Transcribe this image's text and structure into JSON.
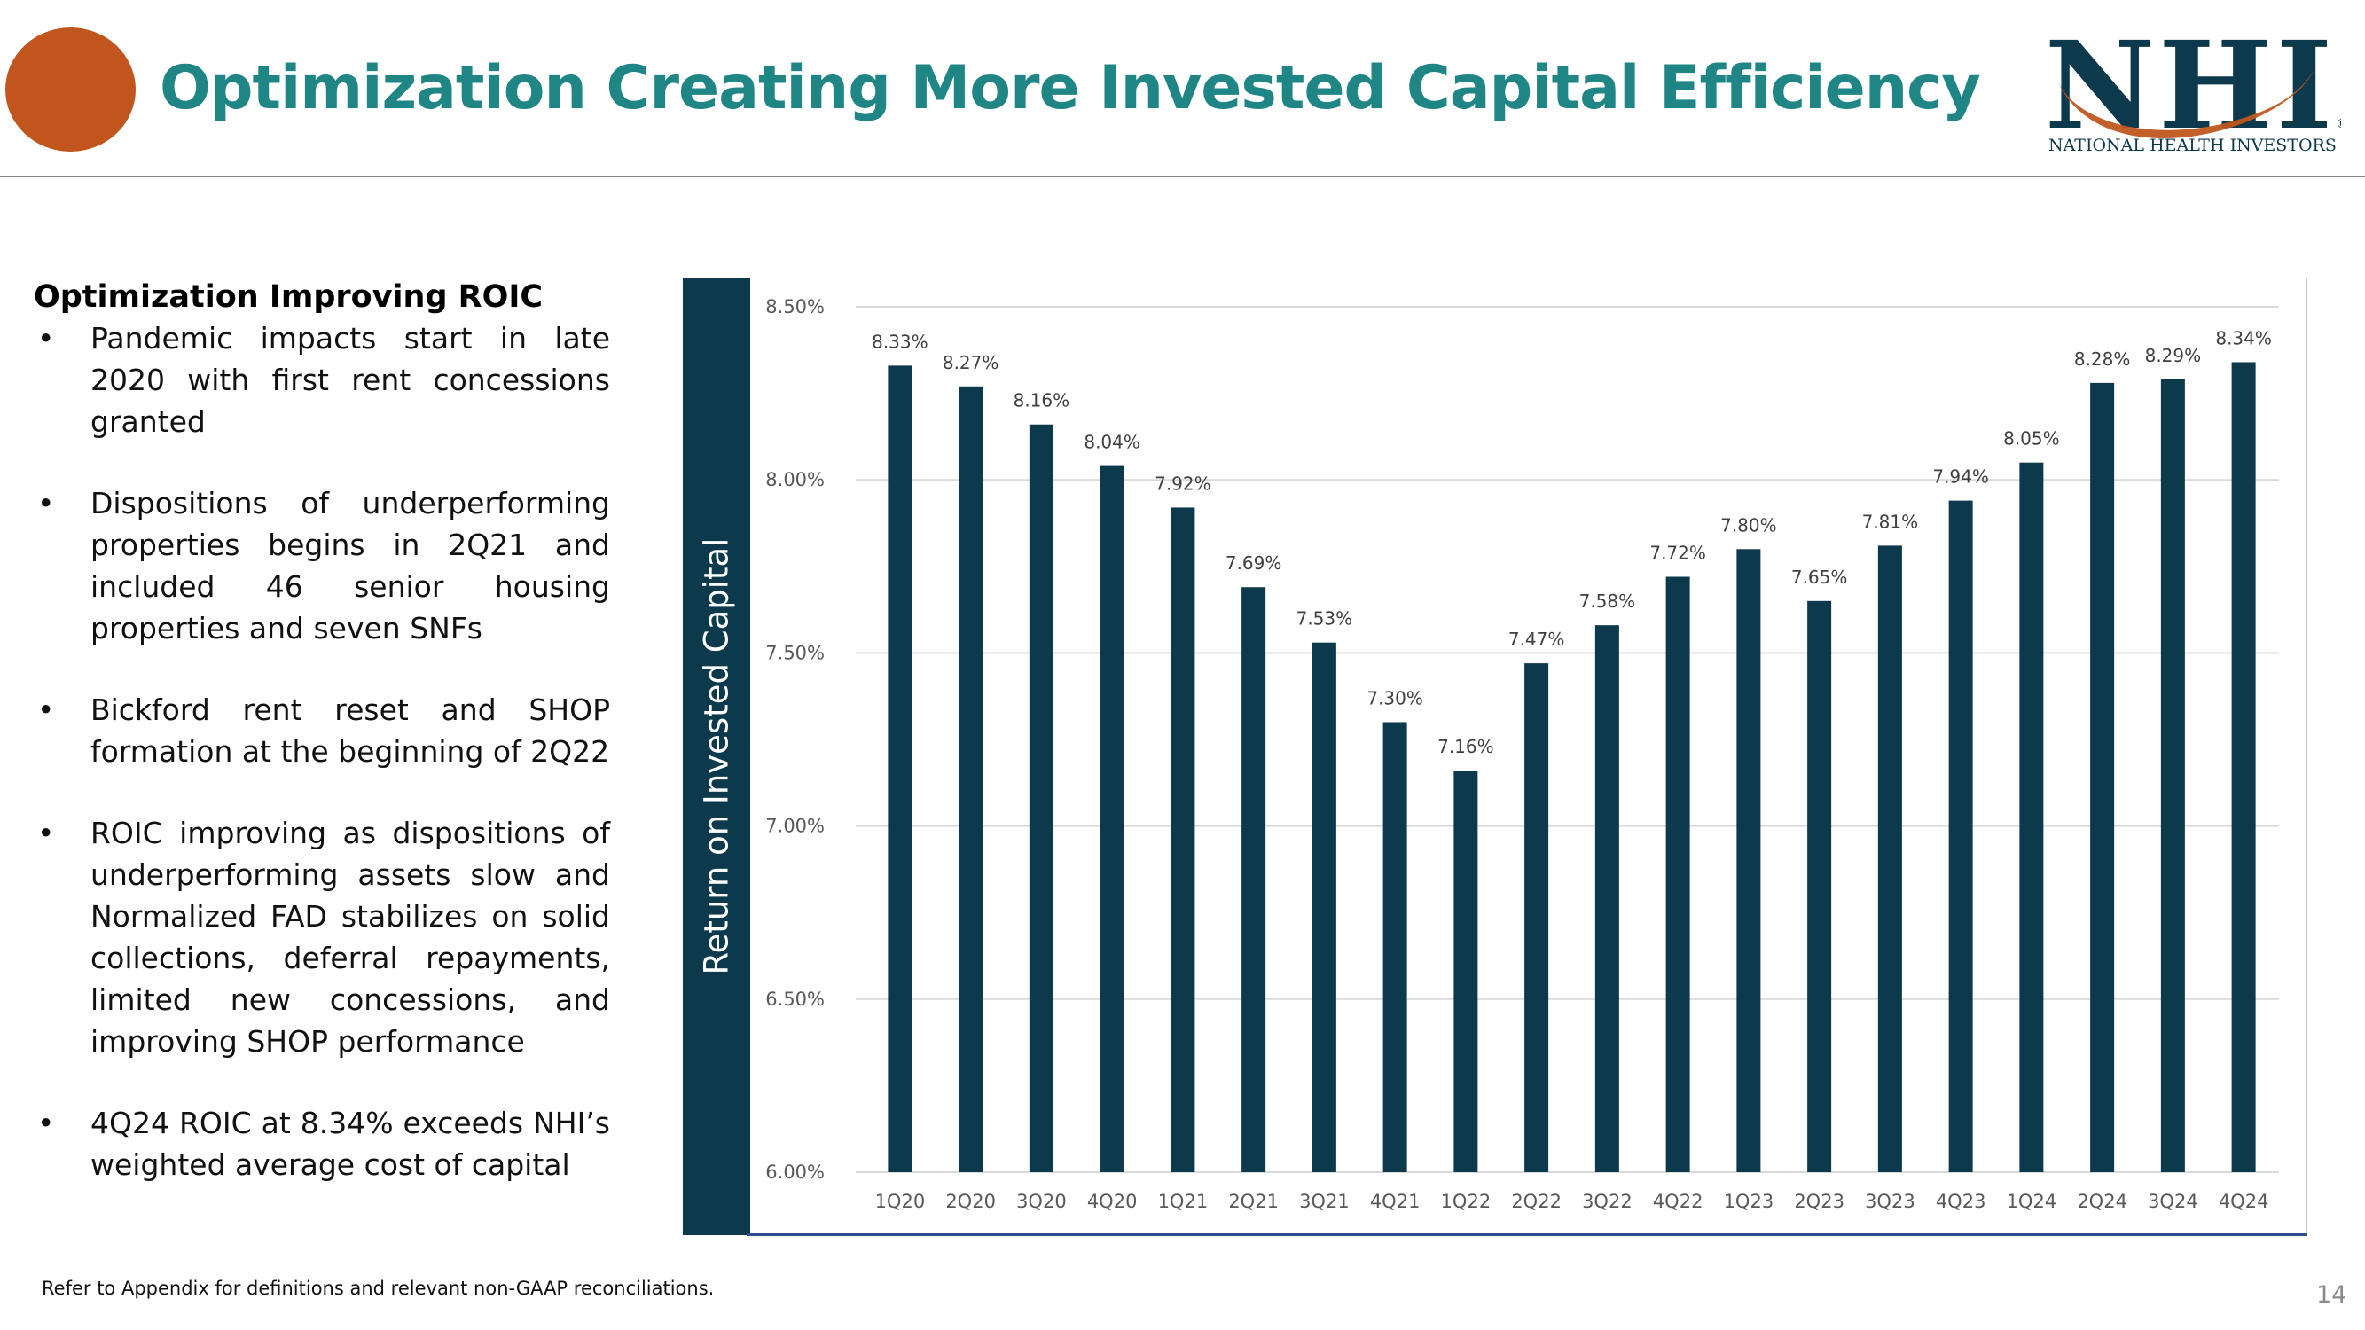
{
  "header": {
    "title": "Optimization Creating More Invested Capital Efficiency",
    "logo_text": "NHI",
    "logo_subtitle": "NATIONAL HEALTH INVESTORS",
    "registered_mark": "®"
  },
  "left": {
    "heading": "Optimization Improving ROIC",
    "bullets": [
      "Pandemic impacts start in late 2020 with first rent concessions granted",
      "Dispositions of underperforming properties begins in 2Q21 and included 46 senior housing properties and seven SNFs",
      "Bickford rent reset and SHOP formation at the beginning of 2Q22",
      "ROIC improving as dispositions of underperforming assets slow and Normalized FAD stabilizes on solid collections, deferral repayments, limited new concessions, and improving SHOP performance",
      "4Q24 ROIC at 8.34% exceeds NHI’s weighted average cost of capital"
    ]
  },
  "chart_data": {
    "type": "bar",
    "categories": [
      "1Q20",
      "2Q20",
      "3Q20",
      "4Q20",
      "1Q21",
      "2Q21",
      "3Q21",
      "4Q21",
      "1Q22",
      "2Q22",
      "3Q22",
      "4Q22",
      "1Q23",
      "2Q23",
      "3Q23",
      "4Q23",
      "1Q24",
      "2Q24",
      "3Q24",
      "4Q24"
    ],
    "values": [
      8.33,
      8.27,
      8.16,
      8.04,
      7.92,
      7.69,
      7.53,
      7.3,
      7.16,
      7.47,
      7.58,
      7.72,
      7.8,
      7.65,
      7.81,
      7.94,
      8.05,
      8.28,
      8.29,
      8.34
    ],
    "value_labels": [
      "8.33%",
      "8.27%",
      "8.16%",
      "8.04%",
      "7.92%",
      "7.69%",
      "7.53%",
      "7.30%",
      "7.16%",
      "7.47%",
      "7.58%",
      "7.72%",
      "7.80%",
      "7.65%",
      "7.81%",
      "7.94%",
      "8.05%",
      "8.28%",
      "8.29%",
      "8.34%"
    ],
    "ylabel": "Return on Invested Capital",
    "ylim": [
      6.0,
      8.5
    ],
    "yticks": [
      6.0,
      6.5,
      7.0,
      7.5,
      8.0,
      8.5
    ],
    "ytick_labels": [
      "6.00%",
      "6.50%",
      "7.00%",
      "7.50%",
      "8.00%",
      "8.50%"
    ],
    "grid": true,
    "bar_color": "#0c3a4c"
  },
  "footer": {
    "footnote": "Refer to Appendix for definitions and relevant non-GAAP reconciliations.",
    "page_number": "14"
  },
  "colors": {
    "title": "#1f8585",
    "accent_orange": "#c0561e",
    "navy": "#0c3a4c"
  }
}
